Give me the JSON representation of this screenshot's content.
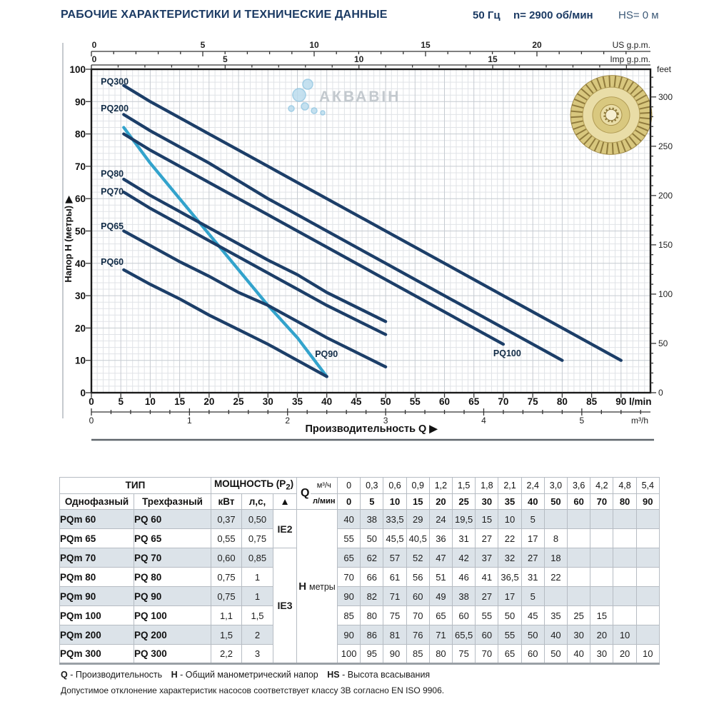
{
  "header": {
    "title": "РАБОЧИЕ ХАРАКТЕРИСТИКИ И ТЕХНИЧЕСКИЕ ДАННЫЕ",
    "frequency": "50 Гц",
    "speed": "n= 2900 об/мин",
    "suction": "HS= 0 м"
  },
  "colors": {
    "navy": "#1c3e68",
    "cyan": "#33a3cc",
    "title_blue": "#1b3a63",
    "table_shade": "#dce3e9"
  },
  "chart_data": {
    "type": "line",
    "watermark": "АКВАВІН",
    "xlabel": "Производительность Q  ▶",
    "x_axes": {
      "lmin": {
        "unit": "l/min",
        "ticks": [
          0,
          5,
          10,
          15,
          20,
          25,
          30,
          35,
          40,
          45,
          50,
          55,
          60,
          65,
          70,
          75,
          80,
          85,
          90
        ],
        "range": [
          0,
          95
        ]
      },
      "m3h": {
        "unit": "m³/h",
        "ticks": [
          0,
          1,
          2,
          3,
          4,
          5
        ]
      },
      "us_gpm": {
        "unit": "US g.p.m.",
        "ticks": [
          0,
          5,
          10,
          15,
          20
        ]
      },
      "imp_gpm": {
        "unit": "Imp g.p.m.",
        "ticks": [
          0,
          5,
          10,
          15
        ]
      }
    },
    "y_axes": {
      "meters": {
        "label": "Напор H (метры)  ▶",
        "ticks": [
          0,
          10,
          20,
          30,
          40,
          50,
          60,
          70,
          80,
          90,
          100
        ],
        "range": [
          0,
          100
        ]
      },
      "feet": {
        "unit": "feet",
        "ticks": [
          0,
          50,
          100,
          150,
          200,
          250,
          300
        ]
      }
    },
    "series": [
      {
        "name": "PQ90",
        "color": "#33a3cc",
        "label_at": [
          38,
          11
        ],
        "points": [
          [
            5.5,
            82
          ],
          [
            10,
            71
          ],
          [
            15,
            60
          ],
          [
            20,
            49
          ],
          [
            25,
            38
          ],
          [
            30,
            27
          ],
          [
            35,
            17
          ],
          [
            40,
            5
          ]
        ]
      },
      {
        "name": "PQ300",
        "color": "#1c3e68",
        "label_at": [
          1.6,
          95.3
        ],
        "points": [
          [
            5.5,
            95
          ],
          [
            10,
            90
          ],
          [
            15,
            85
          ],
          [
            20,
            80
          ],
          [
            25,
            75
          ],
          [
            30,
            70
          ],
          [
            35,
            65
          ],
          [
            40,
            60
          ],
          [
            50,
            50
          ],
          [
            60,
            40
          ],
          [
            70,
            30
          ],
          [
            80,
            20
          ],
          [
            90,
            10
          ]
        ]
      },
      {
        "name": "PQ200",
        "color": "#1c3e68",
        "label_at": [
          1.6,
          87
        ],
        "points": [
          [
            5.5,
            86
          ],
          [
            10,
            81
          ],
          [
            15,
            76
          ],
          [
            20,
            71
          ],
          [
            25,
            65.5
          ],
          [
            30,
            60
          ],
          [
            35,
            55
          ],
          [
            40,
            50
          ],
          [
            50,
            40
          ],
          [
            60,
            30
          ],
          [
            70,
            20
          ],
          [
            80,
            10
          ]
        ]
      },
      {
        "name": "PQ100",
        "color": "#1c3e68",
        "label_at": [
          68.3,
          11.3
        ],
        "points": [
          [
            5.5,
            80
          ],
          [
            10,
            75
          ],
          [
            15,
            70
          ],
          [
            20,
            65
          ],
          [
            25,
            60
          ],
          [
            30,
            55
          ],
          [
            35,
            50
          ],
          [
            40,
            45
          ],
          [
            50,
            35
          ],
          [
            60,
            25
          ],
          [
            70,
            15
          ]
        ]
      },
      {
        "name": "PQ80",
        "color": "#1c3e68",
        "label_at": [
          1.6,
          66.8
        ],
        "points": [
          [
            5.5,
            66
          ],
          [
            10,
            61
          ],
          [
            15,
            56
          ],
          [
            20,
            51
          ],
          [
            25,
            46
          ],
          [
            30,
            41
          ],
          [
            35,
            36.5
          ],
          [
            40,
            31
          ],
          [
            50,
            22
          ]
        ]
      },
      {
        "name": "PQ70",
        "color": "#1c3e68",
        "label_at": [
          1.6,
          61.3
        ],
        "points": [
          [
            5.5,
            62
          ],
          [
            10,
            57
          ],
          [
            15,
            52
          ],
          [
            20,
            47
          ],
          [
            25,
            42
          ],
          [
            30,
            37
          ],
          [
            35,
            32
          ],
          [
            40,
            27
          ],
          [
            50,
            18
          ]
        ]
      },
      {
        "name": "PQ65",
        "color": "#1c3e68",
        "label_at": [
          1.6,
          50.6
        ],
        "points": [
          [
            5.5,
            50
          ],
          [
            10,
            45.5
          ],
          [
            15,
            40.5
          ],
          [
            20,
            36
          ],
          [
            25,
            31
          ],
          [
            30,
            27
          ],
          [
            35,
            22
          ],
          [
            40,
            17
          ],
          [
            50,
            8
          ]
        ]
      },
      {
        "name": "PQ60",
        "color": "#1c3e68",
        "label_at": [
          1.6,
          39.5
        ],
        "points": [
          [
            5.5,
            38
          ],
          [
            10,
            33.5
          ],
          [
            15,
            29
          ],
          [
            20,
            24
          ],
          [
            25,
            19.5
          ],
          [
            30,
            15
          ],
          [
            35,
            10
          ],
          [
            40,
            5
          ]
        ]
      }
    ]
  },
  "table": {
    "headers": {
      "type_group": "ТИП",
      "power_group": "МОЩНОСТЬ (P2)",
      "single_phase": "Однофазный",
      "three_phase": "Трехфазный",
      "kw": "кВт",
      "hp": "л,с,",
      "triangle": "▲",
      "q": "Q",
      "m3h": "м³/ч",
      "lmin": "л/мин",
      "h_label": "H",
      "h_unit": "метры"
    },
    "q_m3h": [
      "0",
      "0,3",
      "0,6",
      "0,9",
      "1,2",
      "1,5",
      "1,8",
      "2,1",
      "2,4",
      "3,0",
      "3,6",
      "4,2",
      "4,8",
      "5,4"
    ],
    "q_lmin": [
      "0",
      "5",
      "10",
      "15",
      "20",
      "25",
      "30",
      "35",
      "40",
      "50",
      "60",
      "70",
      "80",
      "90"
    ],
    "efficiency_classes": [
      {
        "label": "IE2",
        "rows": 2
      },
      {
        "label": "IE3",
        "rows": 6
      }
    ],
    "rows": [
      {
        "single": "PQm 60",
        "three": "PQ 60",
        "kw": "0,37",
        "hp": "0,50",
        "h": [
          "40",
          "38",
          "33,5",
          "29",
          "24",
          "19,5",
          "15",
          "10",
          "5",
          "",
          "",
          "",
          "",
          ""
        ]
      },
      {
        "single": "PQm 65",
        "three": "PQ 65",
        "kw": "0,55",
        "hp": "0,75",
        "h": [
          "55",
          "50",
          "45,5",
          "40,5",
          "36",
          "31",
          "27",
          "22",
          "17",
          "8",
          "",
          "",
          "",
          ""
        ]
      },
      {
        "single": "PQm 70",
        "three": "PQ 70",
        "kw": "0,60",
        "hp": "0,85",
        "h": [
          "65",
          "62",
          "57",
          "52",
          "47",
          "42",
          "37",
          "32",
          "27",
          "18",
          "",
          "",
          "",
          ""
        ]
      },
      {
        "single": "PQm 80",
        "three": "PQ 80",
        "kw": "0,75",
        "hp": "1",
        "h": [
          "70",
          "66",
          "61",
          "56",
          "51",
          "46",
          "41",
          "36,5",
          "31",
          "22",
          "",
          "",
          "",
          ""
        ]
      },
      {
        "single": "PQm 90",
        "three": "PQ 90",
        "kw": "0,75",
        "hp": "1",
        "h": [
          "90",
          "82",
          "71",
          "60",
          "49",
          "38",
          "27",
          "17",
          "5",
          "",
          "",
          "",
          "",
          ""
        ]
      },
      {
        "single": "PQm 100",
        "three": "PQ 100",
        "kw": "1,1",
        "hp": "1,5",
        "h": [
          "85",
          "80",
          "75",
          "70",
          "65",
          "60",
          "55",
          "50",
          "45",
          "35",
          "25",
          "15",
          "",
          ""
        ]
      },
      {
        "single": "PQm 200",
        "three": "PQ 200",
        "kw": "1,5",
        "hp": "2",
        "h": [
          "90",
          "86",
          "81",
          "76",
          "71",
          "65,5",
          "60",
          "55",
          "50",
          "40",
          "30",
          "20",
          "10",
          ""
        ]
      },
      {
        "single": "PQm 300",
        "three": "PQ 300",
        "kw": "2,2",
        "hp": "3",
        "h": [
          "100",
          "95",
          "90",
          "85",
          "80",
          "75",
          "70",
          "65",
          "60",
          "50",
          "40",
          "30",
          "20",
          "10"
        ]
      }
    ]
  },
  "footer": {
    "legend": [
      {
        "term": "Q",
        "desc": " - Производительность"
      },
      {
        "term": "H",
        "desc": " - Общий манометрический напор"
      },
      {
        "term": "HS",
        "desc": " - Высота всасывания"
      }
    ],
    "note": "Допустимое отклонение характеристик насосов соответствует классу 3В согласно EN ISO 9906."
  }
}
